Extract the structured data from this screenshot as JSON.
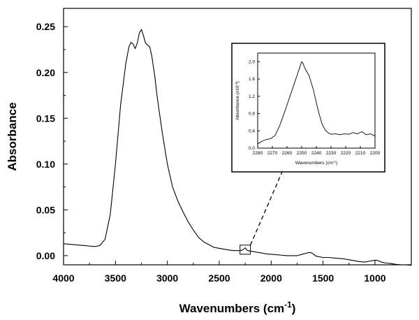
{
  "chart_data": [
    {
      "type": "line",
      "title": "",
      "xlabel": "Wavenumbers (cm",
      "xlabel_sup": "-1",
      "xlabel_tail": ")",
      "ylabel": "Absorbance",
      "xlim": [
        4000,
        650
      ],
      "ylim": [
        -0.01,
        0.27
      ],
      "x_ticks": [
        4000,
        3500,
        3000,
        2500,
        2000,
        1500,
        1000
      ],
      "x_tick_labels": [
        "4000",
        "3500",
        "3000",
        "2500",
        "2000",
        "1500",
        "1000"
      ],
      "y_ticks": [
        0.0,
        0.05,
        0.1,
        0.15,
        0.2,
        0.25
      ],
      "y_tick_labels": [
        "0.00",
        "0.05",
        "0.10",
        "0.15",
        "0.20",
        "0.25"
      ],
      "grid": false,
      "legend": "none",
      "series": [
        {
          "x": [
            4000,
            3900,
            3800,
            3700,
            3650,
            3600,
            3550,
            3500,
            3450,
            3400,
            3370,
            3350,
            3330,
            3310,
            3290,
            3270,
            3250,
            3230,
            3210,
            3190,
            3170,
            3150,
            3120,
            3100,
            3050,
            3000,
            2950,
            2900,
            2850,
            2800,
            2750,
            2700,
            2650,
            2600,
            2550,
            2500,
            2450,
            2400,
            2350,
            2300,
            2280,
            2260,
            2250,
            2240,
            2230,
            2200,
            2150,
            2100,
            2050,
            2000,
            1950,
            1900,
            1850,
            1800,
            1750,
            1700,
            1670,
            1650,
            1630,
            1610,
            1590,
            1570,
            1550,
            1500,
            1450,
            1400,
            1350,
            1300,
            1250,
            1200,
            1150,
            1100,
            1050,
            1000,
            980,
            960,
            940,
            920,
            900,
            850,
            800,
            750,
            700,
            650
          ],
          "y": [
            0.013,
            0.012,
            0.011,
            0.01,
            0.011,
            0.018,
            0.045,
            0.1,
            0.165,
            0.21,
            0.228,
            0.233,
            0.231,
            0.226,
            0.232,
            0.243,
            0.247,
            0.24,
            0.232,
            0.23,
            0.228,
            0.218,
            0.195,
            0.175,
            0.135,
            0.1,
            0.075,
            0.06,
            0.048,
            0.037,
            0.028,
            0.02,
            0.015,
            0.012,
            0.009,
            0.008,
            0.007,
            0.006,
            0.0055,
            0.0055,
            0.006,
            0.0075,
            0.0085,
            0.007,
            0.0055,
            0.005,
            0.004,
            0.003,
            0.002,
            0.0015,
            0.001,
            0.0005,
            0.0,
            0.0,
            0.0,
            0.0015,
            0.0025,
            0.003,
            0.0035,
            0.003,
            0.0015,
            -0.0005,
            -0.001,
            -0.002,
            -0.002,
            -0.0025,
            -0.003,
            -0.0035,
            -0.0045,
            -0.0055,
            -0.0065,
            -0.007,
            -0.006,
            -0.005,
            -0.005,
            -0.006,
            -0.007,
            -0.0075,
            -0.008,
            -0.0085,
            -0.0095,
            -0.01,
            -0.01,
            -0.0105
          ]
        }
      ],
      "zoom_box": {
        "x": [
          2300,
          2200
        ],
        "y": [
          0.0015,
          0.0115
        ]
      }
    },
    {
      "type": "line",
      "title": "",
      "xlabel": "Wavenumbers (cm",
      "xlabel_sup": "-1",
      "xlabel_tail": ")",
      "ylabel": "Absorbance (x10",
      "ylabel_sup": "-3",
      "ylabel_tail": ")",
      "xlim": [
        2280,
        2200
      ],
      "ylim": [
        0.0,
        2.2
      ],
      "x_ticks": [
        2280,
        2270,
        2260,
        2250,
        2240,
        2230,
        2220,
        2210,
        2200
      ],
      "x_tick_labels": [
        "2280",
        "2270",
        "2260",
        "2250",
        "2240",
        "2230",
        "2220",
        "2210",
        "2200"
      ],
      "y_ticks": [
        0.0,
        0.4,
        0.8,
        1.2,
        1.6,
        2.0
      ],
      "y_tick_labels": [
        "0.0",
        "0.4",
        "0.8",
        "1.2",
        "1.6",
        "2.0"
      ],
      "grid": false,
      "legend": "none",
      "series": [
        {
          "x": [
            2280,
            2277,
            2274,
            2271,
            2268,
            2265,
            2262,
            2259,
            2256,
            2253,
            2251,
            2250,
            2249,
            2248,
            2247,
            2245,
            2242,
            2240,
            2238,
            2236,
            2234,
            2232,
            2230,
            2227,
            2224,
            2221,
            2218,
            2215,
            2212,
            2209,
            2206,
            2203,
            2200
          ],
          "y": [
            0.1,
            0.16,
            0.2,
            0.22,
            0.3,
            0.52,
            0.8,
            1.1,
            1.4,
            1.7,
            1.9,
            2.0,
            1.96,
            1.86,
            1.8,
            1.68,
            1.35,
            1.05,
            0.78,
            0.55,
            0.42,
            0.36,
            0.32,
            0.33,
            0.31,
            0.33,
            0.32,
            0.36,
            0.33,
            0.38,
            0.31,
            0.33,
            0.28
          ]
        }
      ]
    }
  ]
}
